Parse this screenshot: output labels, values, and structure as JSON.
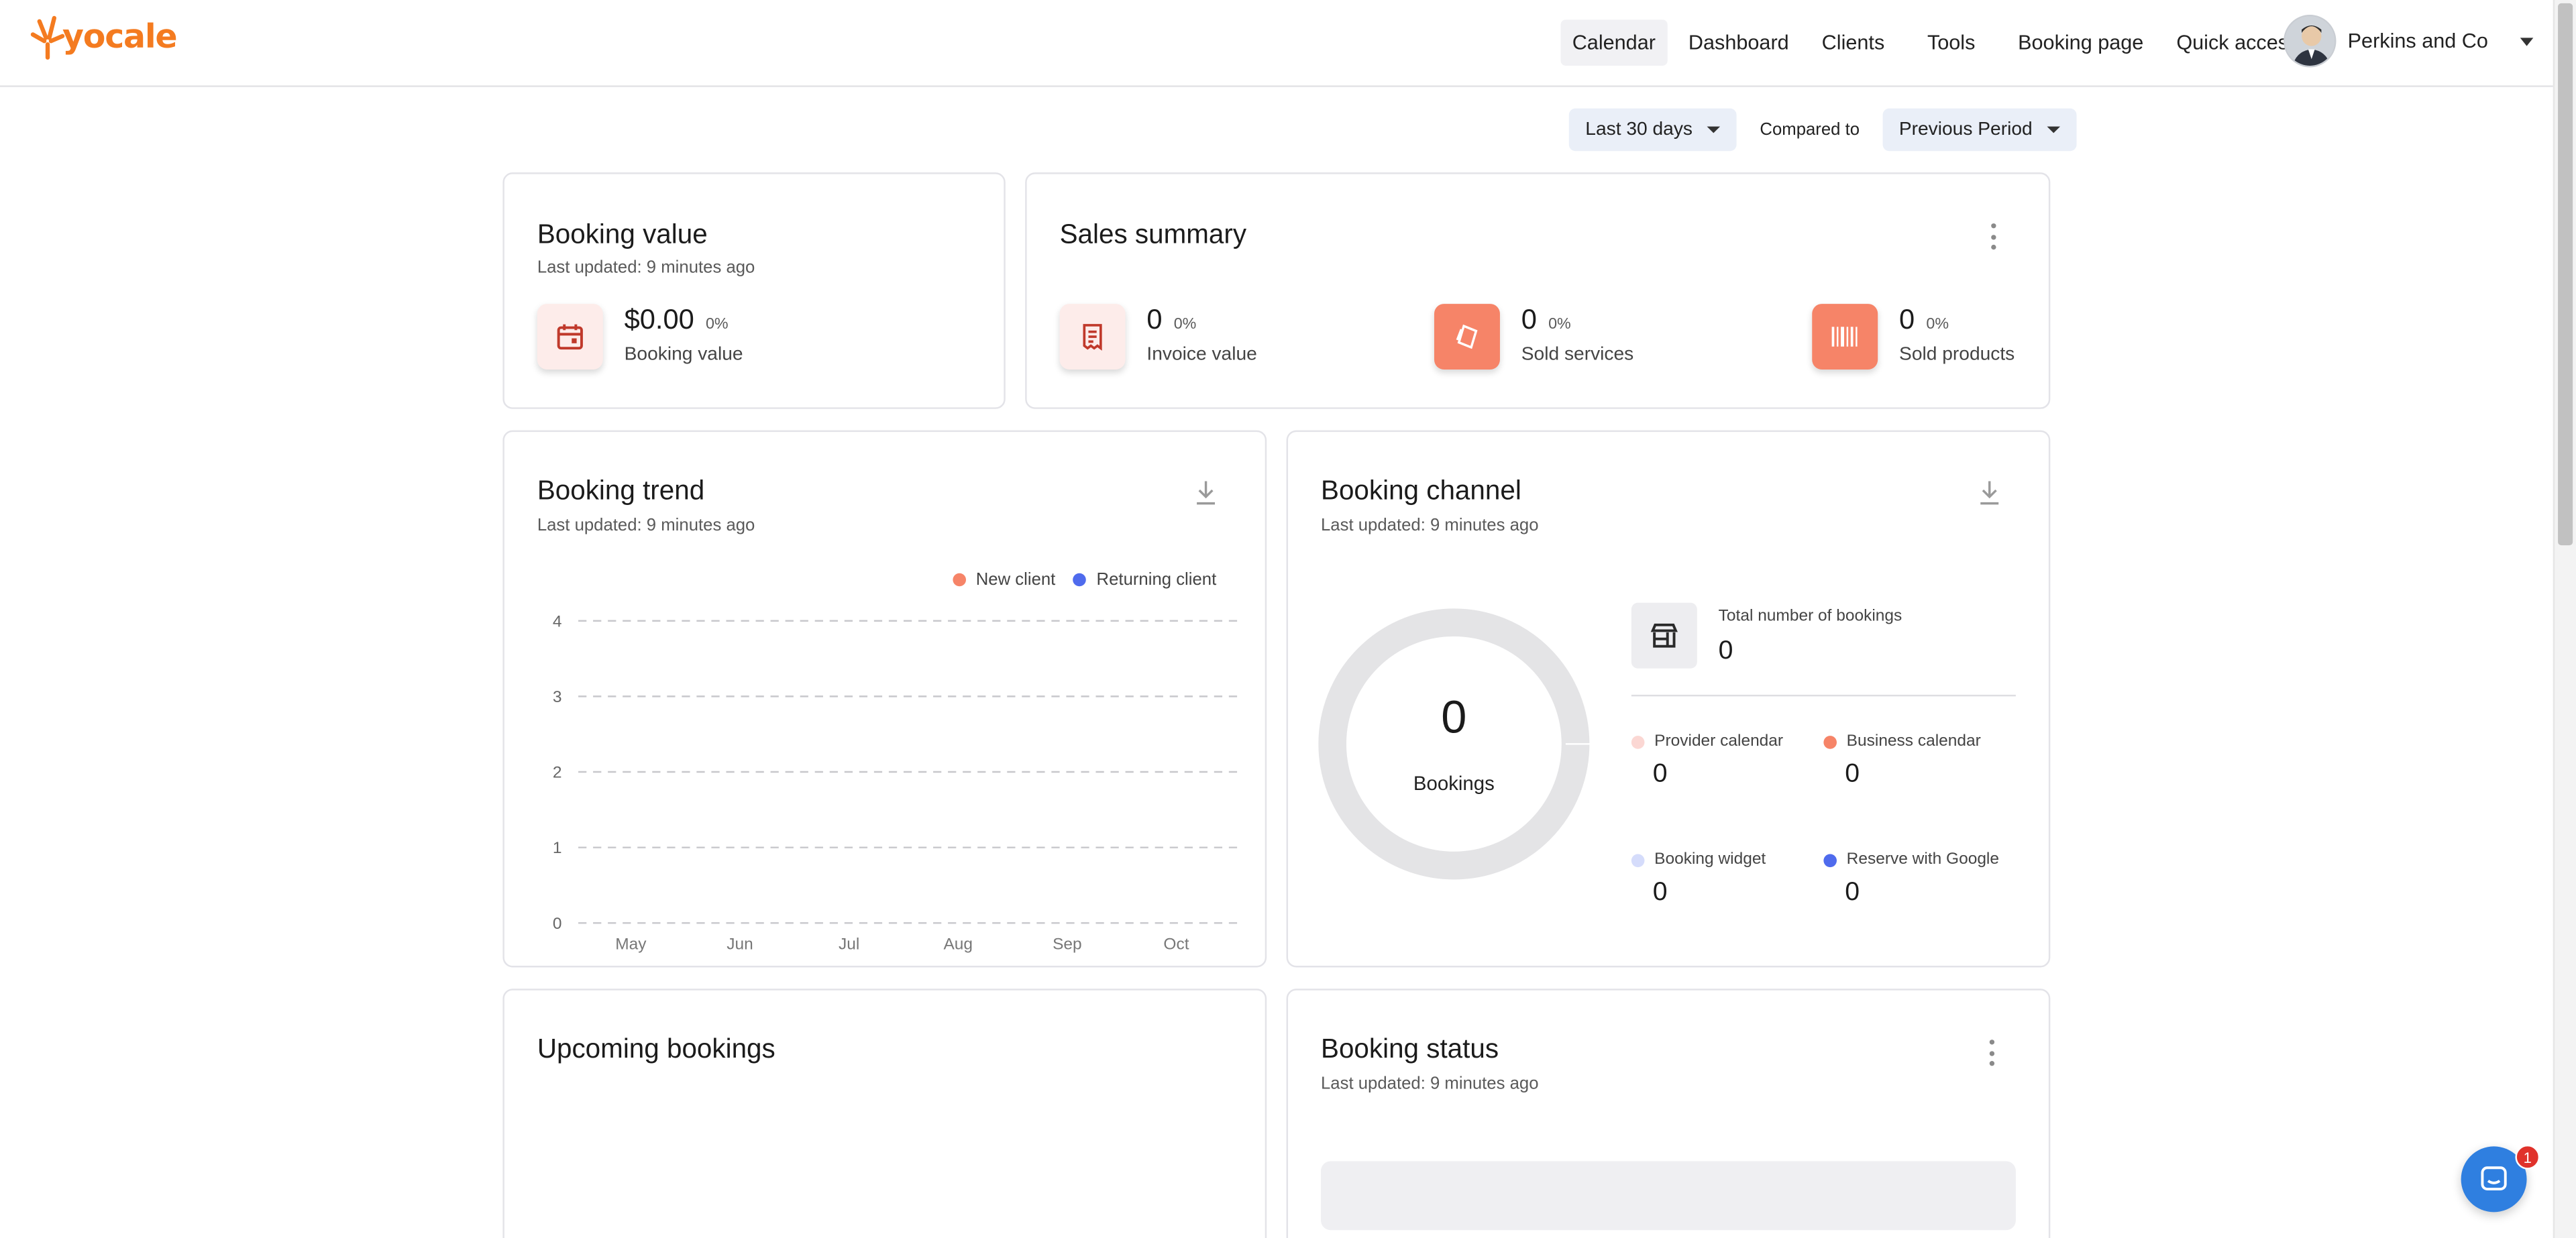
{
  "header": {
    "logo_text": "yocale",
    "nav": [
      {
        "label": "Calendar",
        "active": true
      },
      {
        "label": "Dashboard"
      },
      {
        "label": "Clients"
      },
      {
        "label": "Tools"
      },
      {
        "label": "Booking page"
      },
      {
        "label": "Quick access"
      }
    ],
    "account_name": "Perkins and Co"
  },
  "filters": {
    "range": "Last 30 days",
    "compared_label": "Compared to",
    "compare": "Previous Period"
  },
  "booking_value": {
    "title": "Booking value",
    "updated": "Last updated: 9 minutes ago",
    "value": "$0.00",
    "pct": "0%",
    "label": "Booking value",
    "icon": "calendar-icon"
  },
  "sales_summary": {
    "title": "Sales summary",
    "items": [
      {
        "value": "0",
        "pct": "0%",
        "label": "Invoice value",
        "icon": "receipt-icon"
      },
      {
        "value": "0",
        "pct": "0%",
        "label": "Sold services",
        "icon": "service-tag-icon"
      },
      {
        "value": "0",
        "pct": "0%",
        "label": "Sold products",
        "icon": "barcode-icon"
      }
    ]
  },
  "booking_trend": {
    "title": "Booking trend",
    "updated": "Last updated: 9 minutes ago",
    "legend": [
      {
        "label": "New client",
        "color": "#f68468"
      },
      {
        "label": "Returning client",
        "color": "#4f6bed"
      }
    ]
  },
  "chart_data": {
    "type": "line",
    "categories": [
      "May",
      "Jun",
      "Jul",
      "Aug",
      "Sep",
      "Oct"
    ],
    "series": [
      {
        "name": "New client",
        "values": [
          0,
          0,
          0,
          0,
          0,
          0
        ]
      },
      {
        "name": "Returning client",
        "values": [
          0,
          0,
          0,
          0,
          0,
          0
        ]
      }
    ],
    "yticks": [
      "0",
      "1",
      "2",
      "3",
      "4"
    ],
    "ylim": [
      0,
      4
    ],
    "grid": true,
    "legend_position": "top-right"
  },
  "booking_channel": {
    "title": "Booking channel",
    "updated": "Last updated: 9 minutes ago",
    "donut_value": "0",
    "donut_label": "Bookings",
    "total_label": "Total number of bookings",
    "total_value": "0",
    "channels": [
      {
        "label": "Provider calendar",
        "value": "0",
        "color": "#fbd7d3"
      },
      {
        "label": "Business calendar",
        "value": "0",
        "color": "#f68468"
      },
      {
        "label": "Booking widget",
        "value": "0",
        "color": "#d5dcfb"
      },
      {
        "label": "Reserve with Google",
        "value": "0",
        "color": "#4f6bed"
      }
    ]
  },
  "upcoming": {
    "title": "Upcoming bookings"
  },
  "booking_status": {
    "title": "Booking status",
    "updated": "Last updated: 9 minutes ago"
  },
  "chat": {
    "badge": "1"
  }
}
